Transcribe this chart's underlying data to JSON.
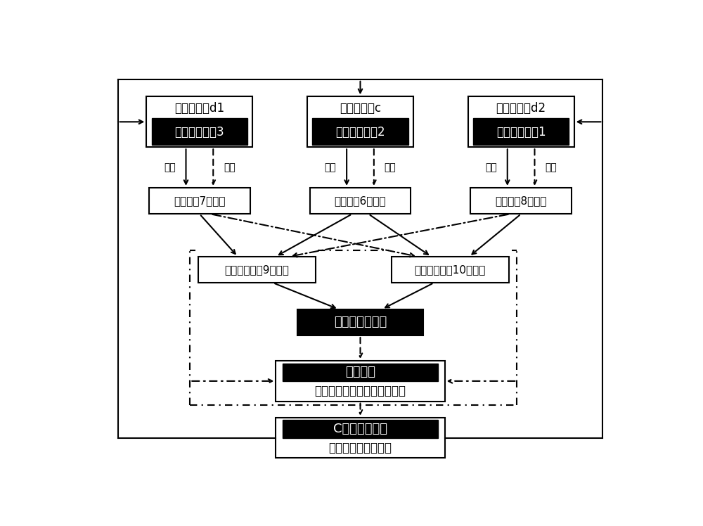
{
  "bg_color": "#ffffff",
  "pump3_top": "分散相流体d1",
  "pump3_bot": "可编程注射泵3",
  "pump2_top": "连续相流体c",
  "pump2_bot": "可编程注射泵2",
  "pump1_top": "分散相流体d2",
  "pump1_bot": "可编程注射泵1",
  "ch7_label": "微通道（7）入口",
  "ch6_label": "微通道（6）入口",
  "ch8_label": "微通道（8）入口",
  "drop9_label": "分散相液滴（9）生成",
  "drop10_label": "分散相液滴（10）生成",
  "fusion_label": "微液滴被动融合",
  "data_top": "数据处理",
  "data_bot": "两液滴生成时间以及两相流速",
  "clang_top": "C语言程序编写",
  "clang_bot": "两相流速周期性变化",
  "biansu": "变速",
  "hensu": "恒速"
}
